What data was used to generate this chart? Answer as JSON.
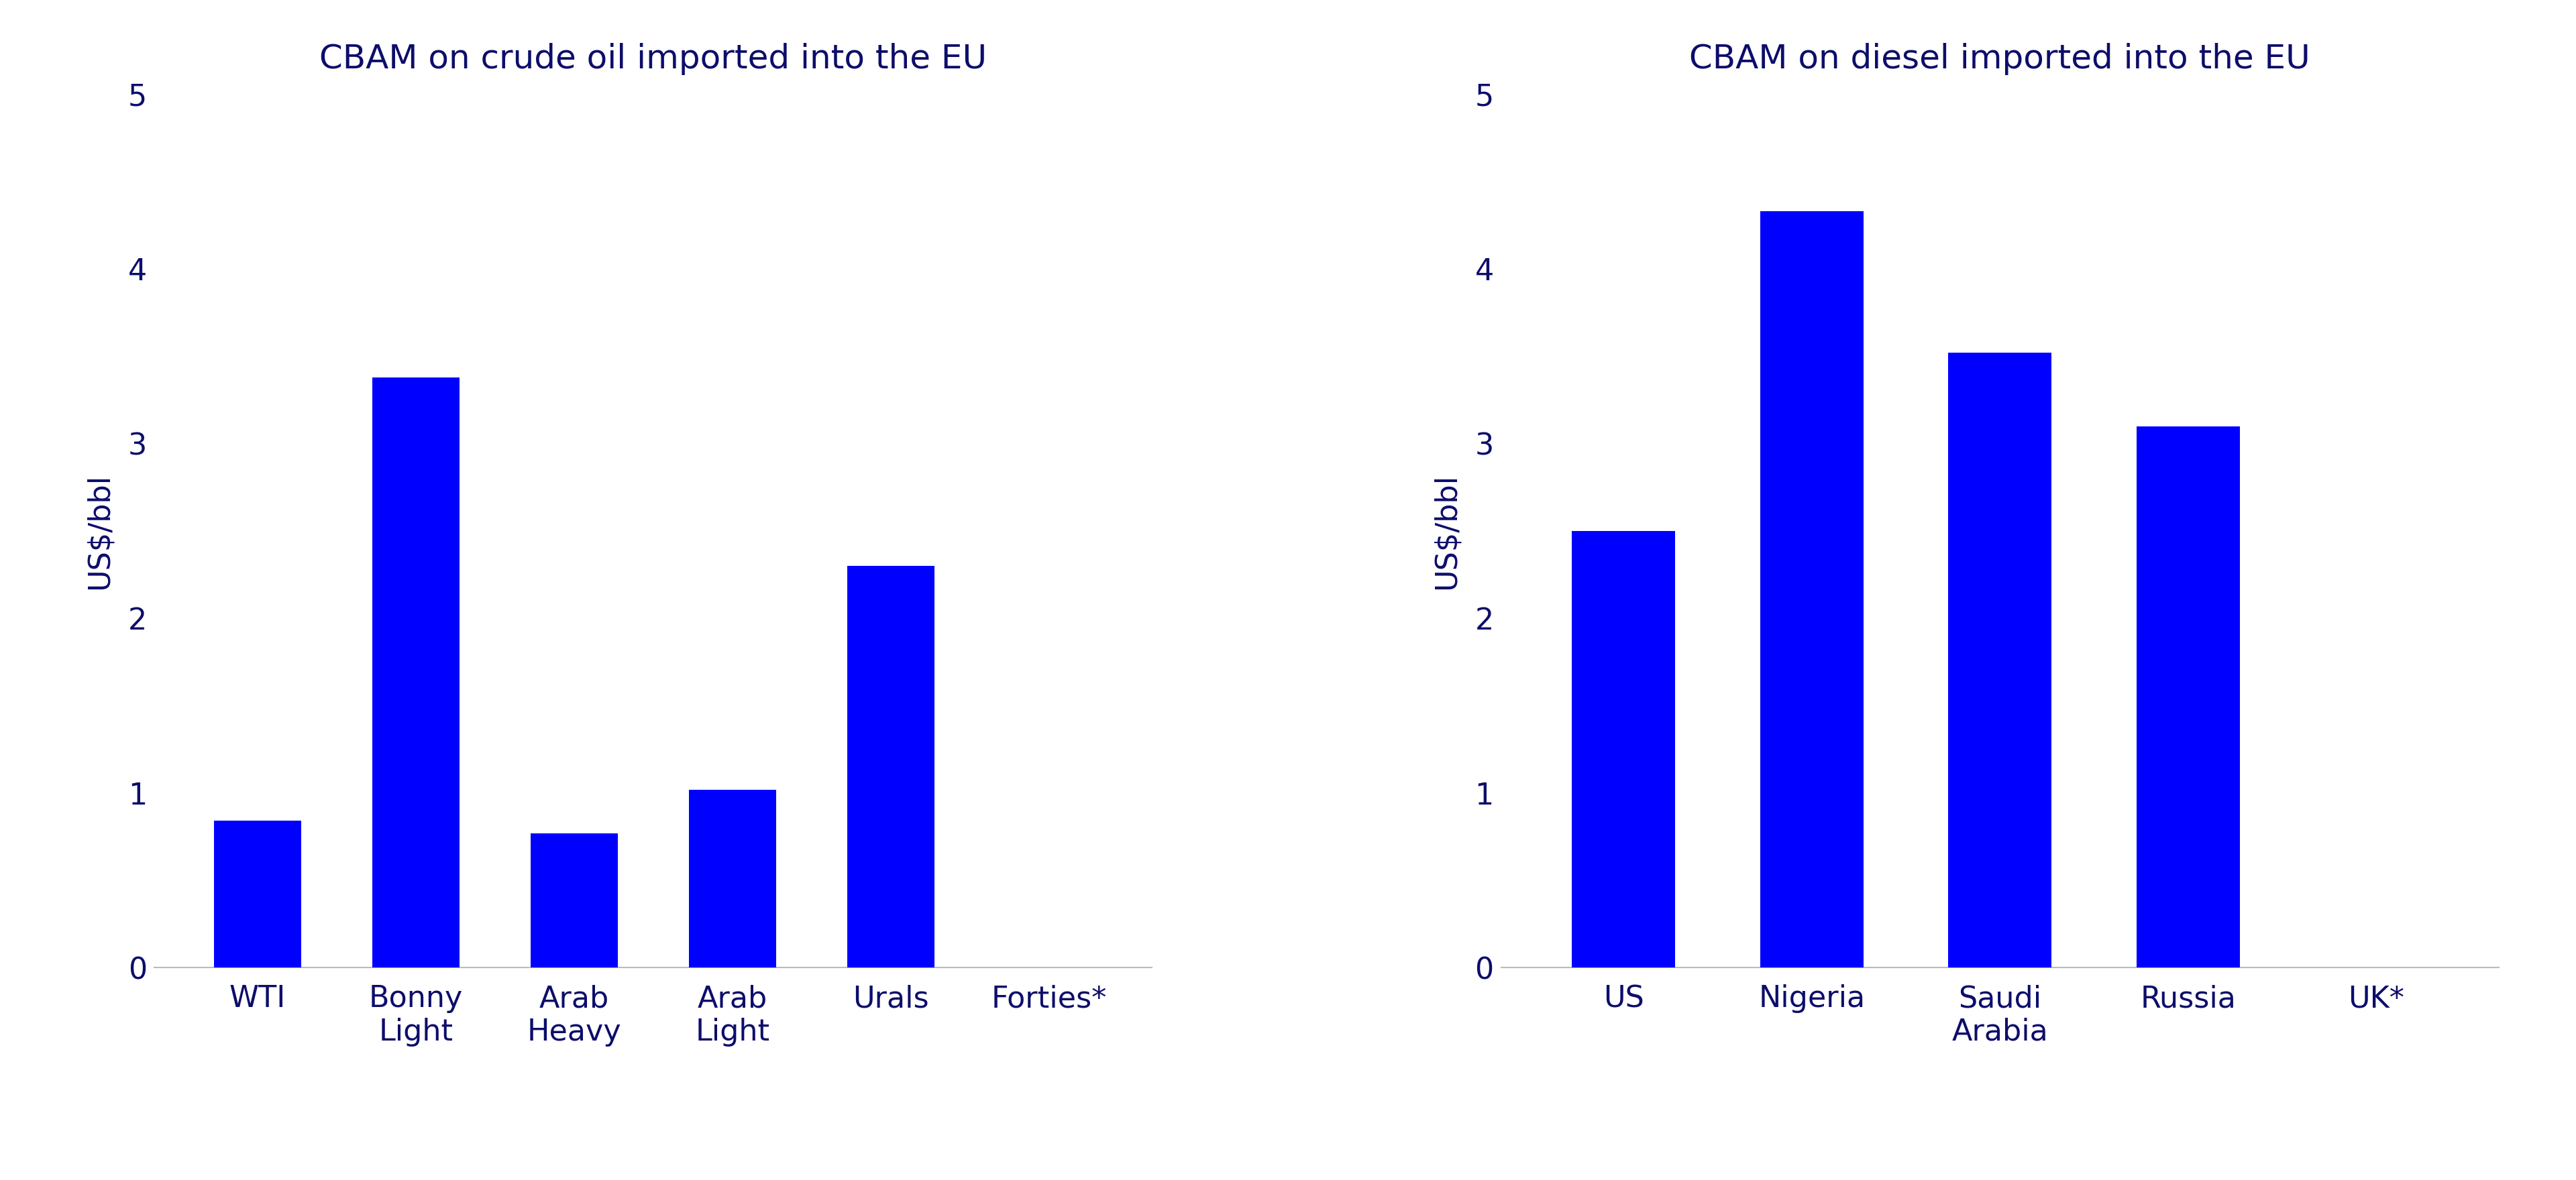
{
  "chart1": {
    "title": "CBAM on crude oil imported into the EU",
    "categories": [
      "WTI",
      "Bonny\nLight",
      "Arab\nHeavy",
      "Arab\nLight",
      "Urals",
      "Forties*"
    ],
    "values": [
      0.84,
      3.38,
      0.77,
      1.02,
      2.3,
      0.0
    ],
    "bar_color": "#0000FF",
    "ylabel": "US$/bbl",
    "ylim": [
      0,
      5
    ],
    "yticks": [
      0,
      1,
      2,
      3,
      4,
      5
    ]
  },
  "chart2": {
    "title": "CBAM on diesel imported into the EU",
    "categories": [
      "US",
      "Nigeria",
      "Saudi\nArabia",
      "Russia",
      "UK*"
    ],
    "values": [
      2.5,
      4.33,
      3.52,
      3.1,
      0.0
    ],
    "bar_color": "#0000FF",
    "ylabel": "US$/bbl",
    "ylim": [
      0,
      5
    ],
    "yticks": [
      0,
      1,
      2,
      3,
      4,
      5
    ]
  },
  "title_color": "#0d0d6b",
  "label_color": "#0d0d6b",
  "tick_color": "#0d0d6b",
  "bg_color": "#ffffff",
  "title_fontsize": 36,
  "ylabel_fontsize": 32,
  "tick_fontsize": 32,
  "xlabel_fontsize": 32,
  "bar_width": 0.55
}
